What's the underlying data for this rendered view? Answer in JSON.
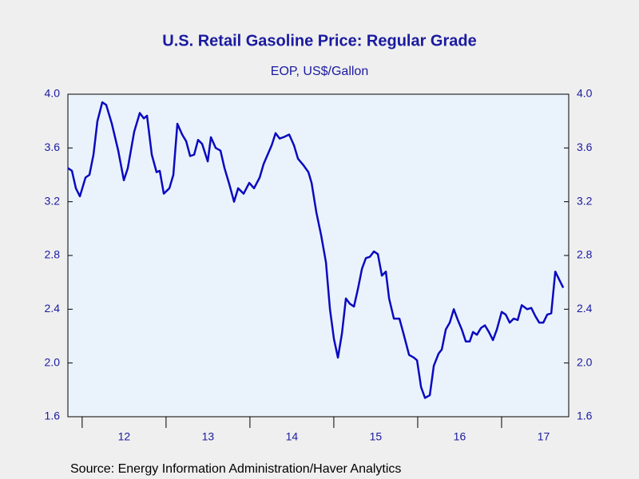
{
  "chart_data": {
    "type": "line",
    "title": "U.S. Retail Gasoline Price: Regular Grade",
    "subtitle": "EOP, US$/Gallon",
    "source": "Source:  Energy Information Administration/Haver Analytics",
    "xlim": [
      2011.83,
      2017.8
    ],
    "xticks": [
      {
        "value": 2012,
        "label": "12"
      },
      {
        "value": 2013,
        "label": "13"
      },
      {
        "value": 2014,
        "label": "14"
      },
      {
        "value": 2015,
        "label": "15"
      },
      {
        "value": 2016,
        "label": "16"
      },
      {
        "value": 2017,
        "label": "17"
      }
    ],
    "ylim": [
      1.6,
      4.0
    ],
    "yticks": [
      {
        "value": 1.6,
        "label": "1.6"
      },
      {
        "value": 2.0,
        "label": "2.0"
      },
      {
        "value": 2.4,
        "label": "2.4"
      },
      {
        "value": 2.8,
        "label": "2.8"
      },
      {
        "value": 3.2,
        "label": "3.2"
      },
      {
        "value": 3.6,
        "label": "3.6"
      },
      {
        "value": 4.0,
        "label": "4.0"
      }
    ],
    "y2lim": [
      1.6,
      4.0
    ],
    "y2ticks": [
      {
        "value": 1.6,
        "label": "1.6"
      },
      {
        "value": 2.0,
        "label": "2.0"
      },
      {
        "value": 2.4,
        "label": "2.4"
      },
      {
        "value": 2.8,
        "label": "2.8"
      },
      {
        "value": 3.2,
        "label": "3.2"
      },
      {
        "value": 3.6,
        "label": "3.6"
      },
      {
        "value": 4.0,
        "label": "4.0"
      }
    ],
    "x": [
      2011.83,
      2011.878,
      2011.925,
      2011.973,
      2012.04,
      2012.087,
      2012.135,
      2012.182,
      2012.24,
      2012.287,
      2012.354,
      2012.43,
      2012.497,
      2012.544,
      2012.62,
      2012.687,
      2012.735,
      2012.773,
      2012.83,
      2012.887,
      2012.925,
      2012.973,
      2013.04,
      2013.087,
      2013.135,
      2013.192,
      2013.24,
      2013.287,
      2013.335,
      2013.382,
      2013.43,
      2013.497,
      2013.535,
      2013.592,
      2013.649,
      2013.697,
      2013.754,
      2013.811,
      2013.859,
      2013.925,
      2013.992,
      2014.049,
      2014.116,
      2014.163,
      2014.211,
      2014.259,
      2014.306,
      2014.354,
      2014.401,
      2014.468,
      2014.525,
      2014.573,
      2014.64,
      2014.697,
      2014.735,
      2014.792,
      2014.849,
      2014.906,
      2014.954,
      2015.001,
      2015.049,
      2015.097,
      2015.144,
      2015.192,
      2015.24,
      2015.287,
      2015.335,
      2015.382,
      2015.43,
      2015.478,
      2015.525,
      2015.573,
      2015.62,
      2015.659,
      2015.716,
      2015.782,
      2015.83,
      2015.897,
      2015.954,
      2015.992,
      2016.04,
      2016.087,
      2016.144,
      2016.192,
      2016.249,
      2016.287,
      2016.335,
      2016.382,
      2016.43,
      2016.478,
      2016.525,
      2016.573,
      2016.62,
      2016.659,
      2016.706,
      2016.754,
      2016.801,
      2016.849,
      2016.897,
      2016.944,
      2017.001,
      2017.049,
      2017.097,
      2017.144,
      2017.192,
      2017.24,
      2017.306,
      2017.354,
      2017.401,
      2017.449,
      2017.497,
      2017.544,
      2017.592,
      2017.64,
      2017.687,
      2017.735
    ],
    "series": [
      {
        "color": "#0a0ac0",
        "values": [
          3.45,
          3.43,
          3.3,
          3.24,
          3.38,
          3.4,
          3.55,
          3.8,
          3.94,
          3.92,
          3.78,
          3.58,
          3.36,
          3.45,
          3.72,
          3.86,
          3.82,
          3.84,
          3.55,
          3.42,
          3.43,
          3.26,
          3.3,
          3.4,
          3.78,
          3.7,
          3.65,
          3.54,
          3.55,
          3.66,
          3.63,
          3.5,
          3.68,
          3.6,
          3.58,
          3.45,
          3.33,
          3.2,
          3.3,
          3.26,
          3.34,
          3.3,
          3.38,
          3.48,
          3.55,
          3.62,
          3.71,
          3.67,
          3.68,
          3.7,
          3.62,
          3.52,
          3.47,
          3.42,
          3.34,
          3.12,
          2.95,
          2.75,
          2.4,
          2.18,
          2.04,
          2.22,
          2.48,
          2.44,
          2.42,
          2.55,
          2.7,
          2.78,
          2.79,
          2.83,
          2.81,
          2.65,
          2.68,
          2.48,
          2.33,
          2.33,
          2.22,
          2.06,
          2.04,
          2.02,
          1.82,
          1.74,
          1.76,
          1.98,
          2.07,
          2.1,
          2.25,
          2.3,
          2.4,
          2.32,
          2.25,
          2.16,
          2.16,
          2.23,
          2.21,
          2.26,
          2.28,
          2.23,
          2.17,
          2.25,
          2.38,
          2.36,
          2.3,
          2.33,
          2.32,
          2.43,
          2.4,
          2.41,
          2.35,
          2.3,
          2.3,
          2.36,
          2.37,
          2.68,
          2.62,
          2.56
        ]
      }
    ]
  }
}
